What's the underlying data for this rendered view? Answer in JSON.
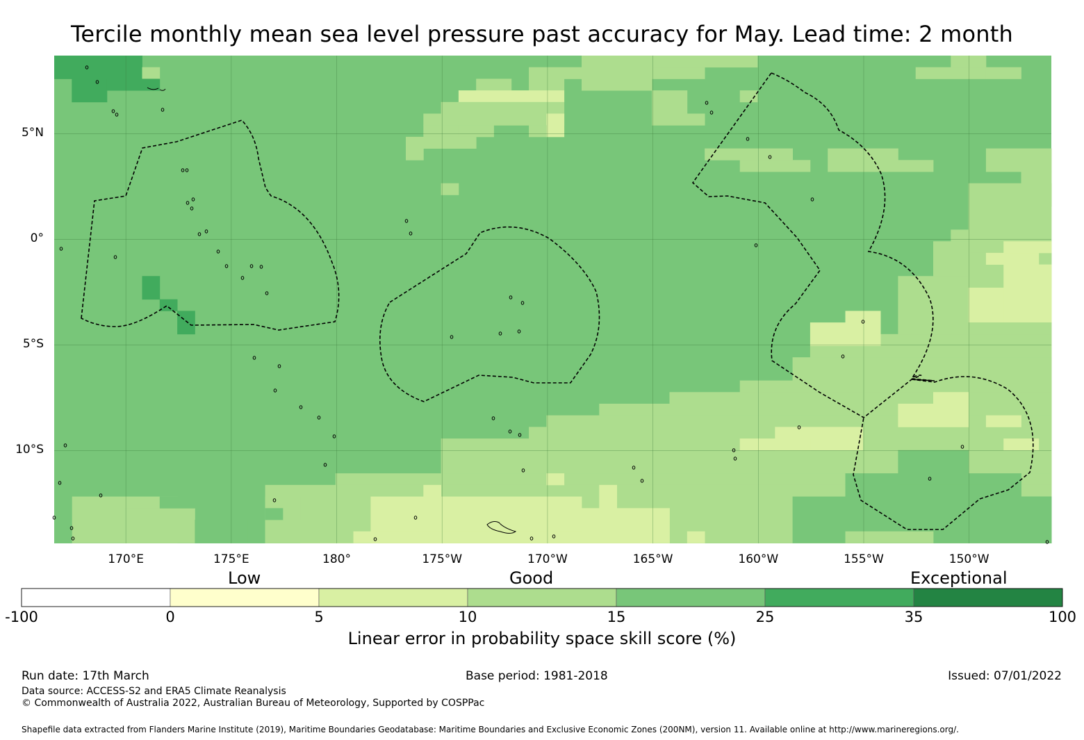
{
  "title": "Tercile monthly mean sea level pressure past accuracy for May. Lead time: 2 month",
  "map": {
    "lat_labels": [
      "5°N",
      "0°",
      "5°S",
      "10°S"
    ],
    "lat_values": [
      5,
      0,
      -5,
      -10
    ],
    "lon_labels": [
      "170°E",
      "175°E",
      "180°",
      "175°W",
      "170°W",
      "165°W",
      "160°W",
      "155°W",
      "150°W"
    ],
    "lon_values": [
      170,
      175,
      180,
      185,
      190,
      195,
      200,
      205,
      210
    ],
    "lon_range": [
      166.6,
      213.9
    ],
    "lat_range": [
      -14.4,
      8.7
    ],
    "colors": {
      "c1": "#ffffcc",
      "c2": "#d9f0a3",
      "c3": "#addd8e",
      "c4": "#78c679",
      "c5": "#41ab5d",
      "c6": "#238443",
      "c0": "#ffffff",
      "grid": "#3d7a3d",
      "boundary": "#000000"
    }
  },
  "colorbar": {
    "categories": [
      "Low",
      "Good",
      "Exceptional"
    ],
    "ticks": [
      "-100",
      "0",
      "5",
      "10",
      "15",
      "25",
      "35",
      "100"
    ],
    "bins": [
      "c0",
      "c1",
      "c2",
      "c3",
      "c4",
      "c5",
      "c6"
    ],
    "label": "Linear error in probability space skill score (%)"
  },
  "footer": {
    "run_date": "Run date: 17th March",
    "base_period": "Base period: 1981-2018",
    "issued": "Issued: 07/01/2022",
    "data_source": "Data source: ACCESS-S2 and ERA5 Climate Reanalysis",
    "copyright": "© Commonwealth of Australia 2022, Australian Bureau of Meteorology, Supported by COSPPac",
    "shapefile": "Shapefile data extracted from Flanders Marine Institute (2019), Maritime Boundaries Geodatabase: Maritime Boundaries and Exclusive Economic Zones (200NM), version 11. Available online at http://www.marineregions.org/."
  }
}
